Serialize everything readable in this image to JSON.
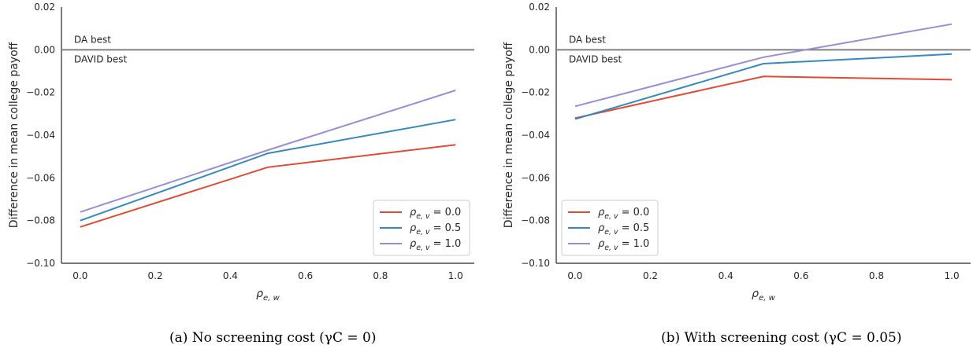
{
  "chart_data": [
    {
      "type": "line",
      "caption": "(a) No screening cost (γC = 0)",
      "xlabel": "ρe, w",
      "ylabel": "Difference in mean college payoff",
      "xlim": [
        -0.05,
        1.05
      ],
      "ylim": [
        -0.1,
        0.02
      ],
      "xticks": [
        "0.0",
        "0.2",
        "0.4",
        "0.6",
        "0.8",
        "1.0"
      ],
      "yticks": [
        "0.02",
        "0.00",
        "−0.02",
        "−0.04",
        "−0.06",
        "−0.08",
        "−0.10"
      ],
      "reference_line": 0.0,
      "annotations": [
        "DA best",
        "DAVID best"
      ],
      "legend_position": "lower-right",
      "x": [
        0.0,
        0.5,
        1.0
      ],
      "series": [
        {
          "name": "ρe, v = 0.0",
          "color": "#e24a33",
          "values": [
            -0.083,
            -0.055,
            -0.0445
          ]
        },
        {
          "name": "ρe, v = 0.5",
          "color": "#348abd",
          "values": [
            -0.08,
            -0.0485,
            -0.0327
          ]
        },
        {
          "name": "ρe, v = 1.0",
          "color": "#988ed5",
          "values": [
            -0.076,
            -0.047,
            -0.019
          ]
        }
      ]
    },
    {
      "type": "line",
      "caption": "(b) With screening cost (γC = 0.05)",
      "xlabel": "ρe, w",
      "ylabel": "Difference in mean college payoff",
      "xlim": [
        -0.05,
        1.05
      ],
      "ylim": [
        -0.1,
        0.02
      ],
      "xticks": [
        "0.0",
        "0.2",
        "0.4",
        "0.6",
        "0.8",
        "1.0"
      ],
      "yticks": [
        "0.02",
        "0.00",
        "−0.02",
        "−0.04",
        "−0.06",
        "−0.08",
        "−0.10"
      ],
      "reference_line": 0.0,
      "annotations": [
        "DA best",
        "DAVID best"
      ],
      "legend_position": "lower-left",
      "x": [
        0.0,
        0.5,
        1.0
      ],
      "series": [
        {
          "name": "ρe, v = 0.0",
          "color": "#e24a33",
          "values": [
            -0.032,
            -0.0125,
            -0.014
          ]
        },
        {
          "name": "ρe, v = 0.5",
          "color": "#348abd",
          "values": [
            -0.0325,
            -0.0065,
            -0.002
          ]
        },
        {
          "name": "ρe, v = 1.0",
          "color": "#988ed5",
          "values": [
            -0.0265,
            -0.0035,
            0.012
          ]
        }
      ]
    }
  ]
}
